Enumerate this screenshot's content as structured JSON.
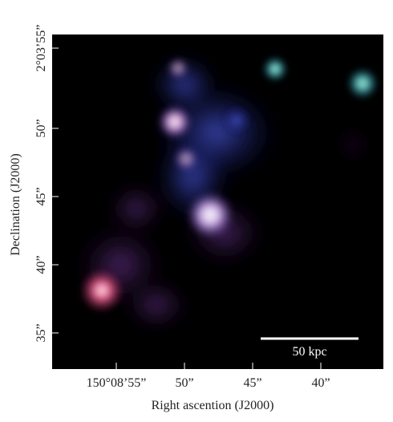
{
  "figure": {
    "x_axis": {
      "label": "Right ascention (J2000)",
      "ticks": [
        "150°08’55”",
        "50”",
        "45”",
        "40”"
      ]
    },
    "y_axis": {
      "label": "Declination (J2000)",
      "ticks": [
        "2°03’55”",
        "50”",
        "45”",
        "40”",
        "35”"
      ]
    },
    "scale_bar": {
      "label": "50 kpc"
    }
  }
}
